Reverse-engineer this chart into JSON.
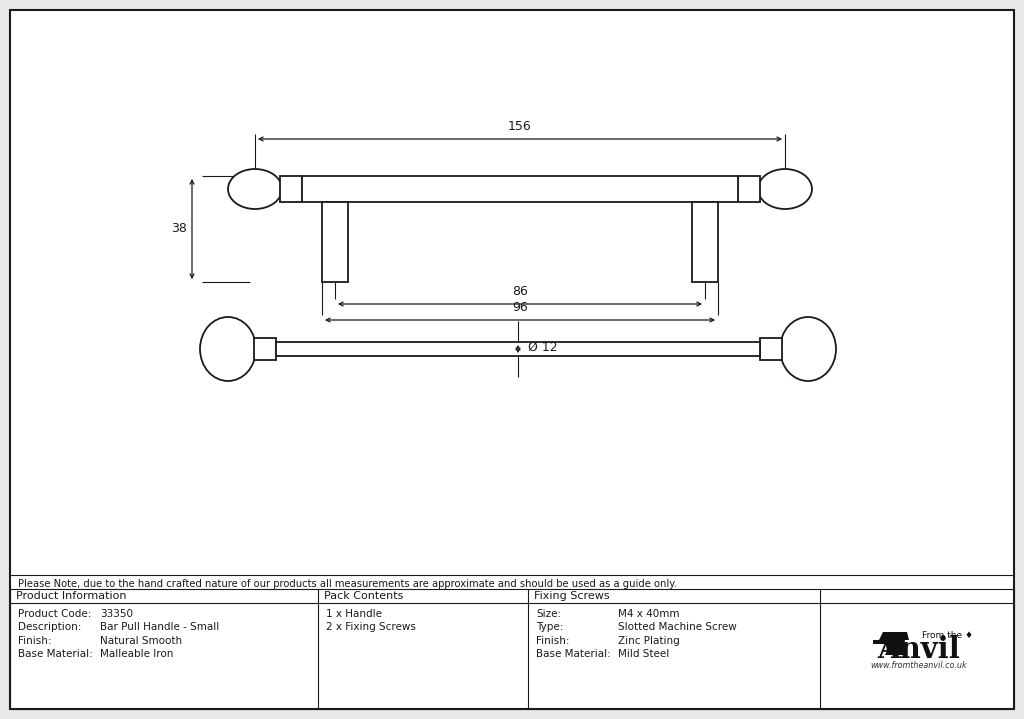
{
  "bg_color": "#e8e8e8",
  "drawing_bg": "#ffffff",
  "line_color": "#1a1a1a",
  "note_text": "Please Note, due to the hand crafted nature of our products all measurements are approximate and should be used as a guide only.",
  "product_info": {
    "header": "Product Information",
    "rows": [
      [
        "Product Code:",
        "33350"
      ],
      [
        "Description:",
        "Bar Pull Handle - Small"
      ],
      [
        "Finish:",
        "Natural Smooth"
      ],
      [
        "Base Material:",
        "Malleable Iron"
      ]
    ]
  },
  "pack_contents": {
    "header": "Pack Contents",
    "rows": [
      "1 x Handle",
      "2 x Fixing Screws"
    ]
  },
  "fixing_screws": {
    "header": "Fixing Screws",
    "rows": [
      [
        "Size:",
        "M4 x 40mm"
      ],
      [
        "Type:",
        "Slotted Machine Screw"
      ],
      [
        "Finish:",
        "Zinc Plating"
      ],
      [
        "Base Material:",
        "Mild Steel"
      ]
    ]
  },
  "dim_156": "156",
  "dim_38": "38",
  "dim_86": "86",
  "dim_96": "96",
  "dim_12": "Ø 12",
  "label_col1": 95,
  "label_col2": 175,
  "col3_label": 545,
  "col3_val": 635
}
